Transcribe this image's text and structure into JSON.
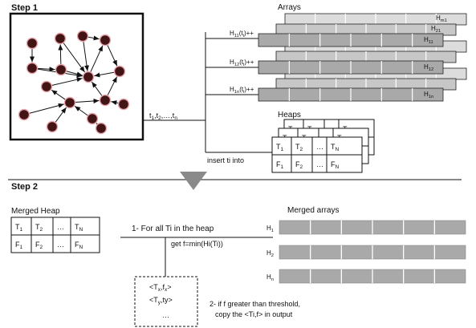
{
  "step1": {
    "title": "Step 1"
  },
  "step2": {
    "title": "Step 2"
  },
  "time_seq": "t1,t2,…,tn",
  "arrays": {
    "title": "Arrays",
    "back_labels": [
      "Hm1",
      "H21"
    ],
    "front_labels": [
      "H11",
      "H12",
      "H1n"
    ],
    "increments": [
      "H11(ti)++",
      "H12(ti)++",
      "H1n(ti)++"
    ]
  },
  "heaps": {
    "title": "Heaps",
    "insert_label": "insert ti into",
    "back_row_labels": [
      "T1",
      "T2",
      "TN"
    ],
    "row_t": [
      "T1",
      "T2",
      "…",
      "TN"
    ],
    "row_f": [
      "F1",
      "F2",
      "…",
      "FN"
    ]
  },
  "merged_heap": {
    "title": "Merged Heap",
    "row_t": [
      "T1",
      "T2",
      "…",
      "TN"
    ],
    "row_f": [
      "F1",
      "F2",
      "…",
      "FN"
    ]
  },
  "merged_arrays": {
    "title": "Merged arrays",
    "labels": [
      "H1",
      "H2",
      "Hn"
    ]
  },
  "step2_texts": {
    "for_all": "1- For all Ti in the heap",
    "get_f": "get f=min(Hi(Ti))",
    "threshold": "2- if  f greater than threshold,",
    "copy": "copy the <Ti,f> in output"
  },
  "output_box": [
    "<Tx,fx>",
    "<Ty,ty>",
    "…"
  ],
  "colors": {
    "node_fill": "#421414",
    "node_stroke": "#e8a8b0",
    "array_gray": "#a9a9a9",
    "arrow_gray": "#8a8a8a"
  }
}
